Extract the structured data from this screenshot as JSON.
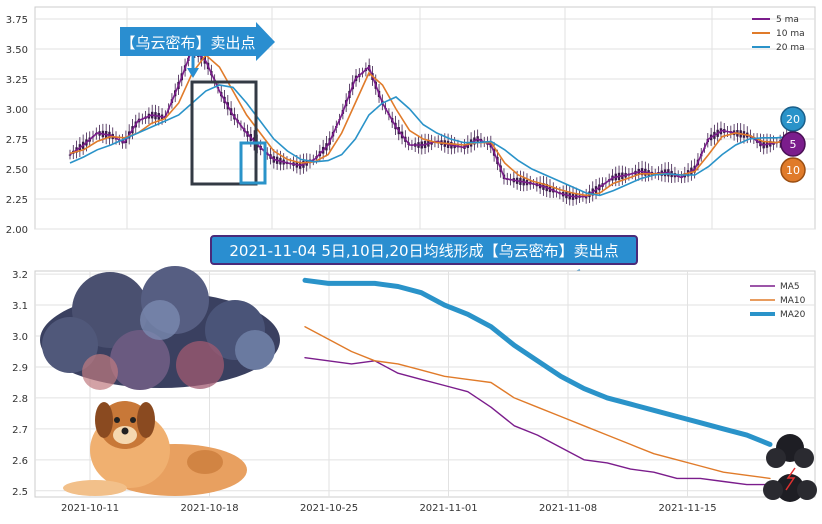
{
  "chart_data": [
    {
      "type": "line",
      "subtype": "candlestick-with-moving-averages",
      "ylim": [
        2.0,
        3.85
      ],
      "y_ticks": [
        "2.00",
        "2.25",
        "2.50",
        "2.75",
        "3.00",
        "3.25",
        "3.50",
        "3.75"
      ],
      "grid": true,
      "legend_position": "top-right",
      "legend": [
        "5 ma",
        "10 ma",
        "20 ma"
      ],
      "colors": {
        "ma5": "#7b1d8c",
        "ma10": "#e07b2a",
        "ma20": "#2a93c9",
        "candle": "#3a1a4a"
      },
      "series": [
        {
          "name": "5 ma",
          "values": [
            2.62,
            2.7,
            2.8,
            2.78,
            2.72,
            2.9,
            2.95,
            2.93,
            3.2,
            3.5,
            3.4,
            3.15,
            2.95,
            2.8,
            2.68,
            2.58,
            2.55,
            2.53,
            2.58,
            2.7,
            2.95,
            3.25,
            3.35,
            3.05,
            2.85,
            2.7,
            2.7,
            2.73,
            2.7,
            2.68,
            2.75,
            2.7,
            2.42,
            2.4,
            2.38,
            2.35,
            2.3,
            2.27,
            2.27,
            2.35,
            2.43,
            2.45,
            2.48,
            2.46,
            2.47,
            2.43,
            2.5,
            2.75,
            2.82,
            2.8,
            2.78,
            2.7,
            2.72,
            2.75
          ]
        },
        {
          "name": "10 ma",
          "values": [
            2.63,
            2.66,
            2.73,
            2.77,
            2.76,
            2.8,
            2.88,
            2.92,
            3.05,
            3.3,
            3.45,
            3.35,
            3.15,
            2.95,
            2.8,
            2.65,
            2.58,
            2.55,
            2.56,
            2.62,
            2.8,
            3.05,
            3.3,
            3.2,
            3.0,
            2.82,
            2.75,
            2.72,
            2.71,
            2.7,
            2.72,
            2.72,
            2.55,
            2.45,
            2.4,
            2.37,
            2.33,
            2.3,
            2.28,
            2.3,
            2.38,
            2.42,
            2.46,
            2.46,
            2.46,
            2.45,
            2.48,
            2.62,
            2.77,
            2.8,
            2.78,
            2.73,
            2.72,
            2.74
          ]
        },
        {
          "name": "20 ma",
          "values": [
            2.55,
            2.6,
            2.66,
            2.7,
            2.75,
            2.8,
            2.85,
            2.9,
            2.95,
            3.05,
            3.15,
            3.2,
            3.18,
            3.05,
            2.9,
            2.75,
            2.65,
            2.58,
            2.56,
            2.57,
            2.62,
            2.75,
            2.95,
            3.05,
            3.1,
            3.0,
            2.87,
            2.8,
            2.75,
            2.72,
            2.72,
            2.73,
            2.66,
            2.57,
            2.5,
            2.45,
            2.4,
            2.35,
            2.3,
            2.28,
            2.32,
            2.37,
            2.42,
            2.45,
            2.46,
            2.45,
            2.45,
            2.52,
            2.62,
            2.7,
            2.75,
            2.76,
            2.76,
            2.77
          ]
        }
      ]
    },
    {
      "type": "line",
      "x_ticks": [
        "2021-10-11",
        "2021-10-18",
        "2021-10-25",
        "2021-11-01",
        "2021-11-08",
        "2021-11-15"
      ],
      "ylim": [
        2.48,
        3.21
      ],
      "y_ticks": [
        "2.5",
        "2.6",
        "2.7",
        "2.8",
        "2.9",
        "3.0",
        "3.1",
        "3.2"
      ],
      "grid": true,
      "legend_position": "top-right",
      "legend": [
        "MA5",
        "MA10",
        "MA20"
      ],
      "colors": {
        "ma5": "#7b1d8c",
        "ma10": "#e07b2a",
        "ma20": "#2a93c9"
      },
      "x": [
        "2021-10-22",
        "2021-10-25",
        "2021-10-26",
        "2021-10-27",
        "2021-10-28",
        "2021-10-29",
        "2021-11-01",
        "2021-11-02",
        "2021-11-03",
        "2021-11-04",
        "2021-11-05",
        "2021-11-08",
        "2021-11-09",
        "2021-11-10",
        "2021-11-11",
        "2021-11-12",
        "2021-11-15",
        "2021-11-16",
        "2021-11-17",
        "2021-11-18",
        "2021-11-19"
      ],
      "series": [
        {
          "name": "MA5",
          "values": [
            2.93,
            2.92,
            2.91,
            2.92,
            2.88,
            2.86,
            2.84,
            2.82,
            2.77,
            2.71,
            2.68,
            2.64,
            2.6,
            2.59,
            2.57,
            2.56,
            2.54,
            2.54,
            2.53,
            2.52,
            2.52
          ]
        },
        {
          "name": "MA10",
          "values": [
            3.03,
            2.99,
            2.95,
            2.92,
            2.91,
            2.89,
            2.87,
            2.86,
            2.85,
            2.8,
            2.77,
            2.74,
            2.71,
            2.68,
            2.65,
            2.62,
            2.6,
            2.58,
            2.56,
            2.55,
            2.54
          ]
        },
        {
          "name": "MA20",
          "values": [
            3.18,
            3.17,
            3.17,
            3.17,
            3.16,
            3.14,
            3.1,
            3.07,
            3.03,
            2.97,
            2.92,
            2.87,
            2.83,
            2.8,
            2.78,
            2.76,
            2.74,
            2.72,
            2.7,
            2.68,
            2.65
          ]
        }
      ]
    }
  ],
  "annotations": {
    "top_arrow_label": "【乌云密布】卖出点",
    "banner": "2021-11-04 5日,10日,20日均线形成【乌云密布】卖出点",
    "badges": [
      "20",
      "5",
      "10"
    ]
  },
  "decorations": {
    "cloud": "storm-cloud-illustration",
    "dog": "dog-illustration",
    "small_cloud": "lightning-cloud-icon"
  }
}
